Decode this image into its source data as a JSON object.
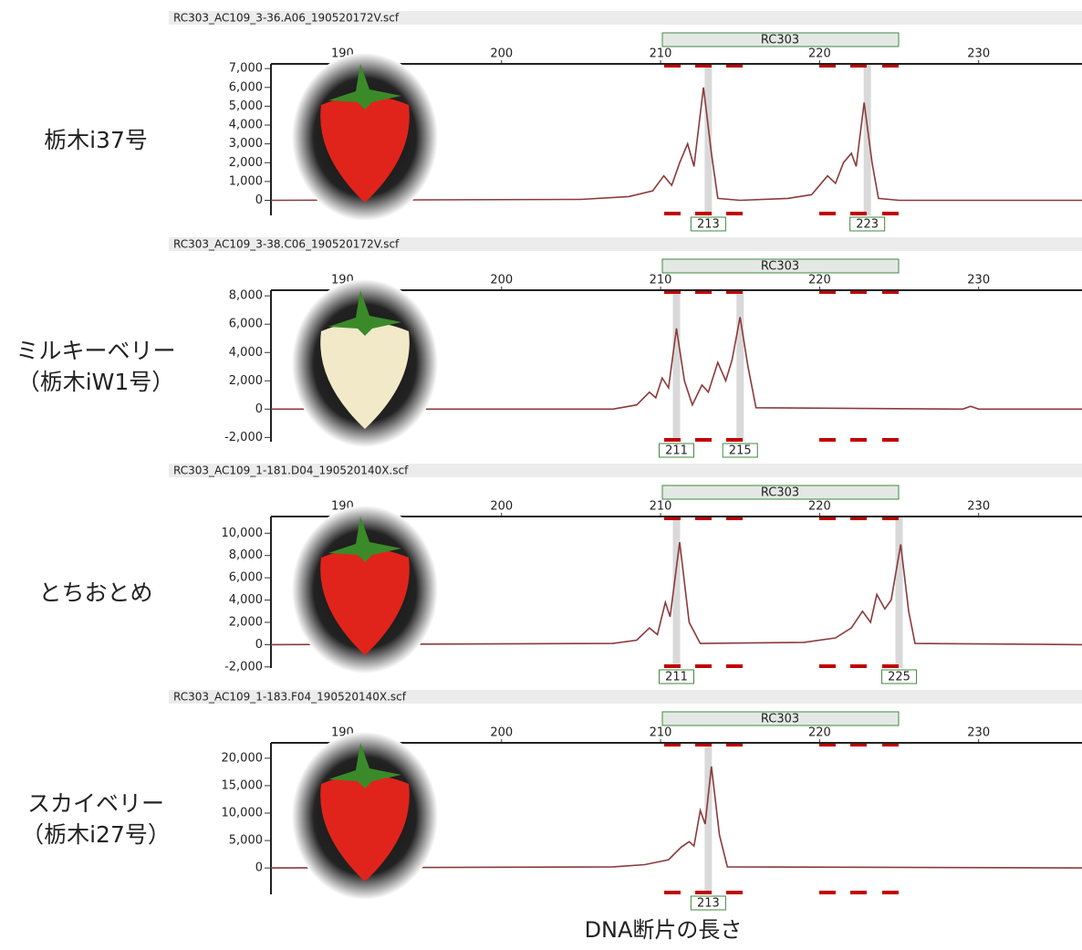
{
  "chart_data": [
    {
      "type": "line",
      "title": "RC303_AC109_3-36.A06_190520172V.scf",
      "marker": "RC303",
      "annotations": [
        "栃木i37号"
      ],
      "color": "#8b3a3a",
      "xlim": [
        185.5,
        236.5
      ],
      "xticks": [
        190,
        200,
        210,
        220,
        230
      ],
      "ylim": [
        -800,
        7250
      ],
      "yticks": [
        {
          "value": 7000,
          "label": "7,000"
        },
        {
          "value": 6000,
          "label": "6,000"
        },
        {
          "value": 5000,
          "label": "5,000"
        },
        {
          "value": 4000,
          "label": "4,000"
        },
        {
          "value": 3000,
          "label": "3,000"
        },
        {
          "value": 2000,
          "label": "2,000"
        },
        {
          "value": 1000,
          "label": "1,000"
        },
        0
      ],
      "peaks": [
        213,
        223
      ],
      "x": [
        185.5,
        205,
        208,
        209.5,
        210.2,
        210.7,
        211.2,
        211.7,
        212.1,
        212.7,
        213.2,
        213.6,
        215,
        218,
        219.5,
        220.5,
        221,
        221.5,
        222,
        222.3,
        222.8,
        223.3,
        223.7,
        225,
        236.5
      ],
      "values": [
        0,
        50,
        200,
        500,
        1300,
        800,
        2000,
        3000,
        1800,
        6000,
        2500,
        100,
        0,
        100,
        300,
        1300,
        900,
        2000,
        2500,
        1800,
        5200,
        2000,
        100,
        0,
        0
      ]
    },
    {
      "type": "line",
      "title": "RC303_AC109_3-38.C06_190520172V.scf",
      "marker": "RC303",
      "annotations": [
        "ミルキーベリー",
        "（栃木iW1号）"
      ],
      "color": "#8b3a3a",
      "xlim": [
        185.5,
        236.5
      ],
      "xticks": [
        190,
        200,
        210,
        220,
        230
      ],
      "ylim": [
        -2300,
        8400
      ],
      "yticks": [
        {
          "value": 8000,
          "label": "8,000"
        },
        {
          "value": 6000,
          "label": "6,000"
        },
        {
          "value": 4000,
          "label": "4,000"
        },
        {
          "value": 2000,
          "label": "2,000"
        },
        0,
        {
          "value": -2000,
          "label": "-2,000"
        }
      ],
      "peaks": [
        211,
        215
      ],
      "x": [
        185.5,
        207,
        208.5,
        209.3,
        209.7,
        210.1,
        210.5,
        211,
        211.5,
        212,
        212.6,
        213,
        213.6,
        214.1,
        214.5,
        215,
        215.5,
        216,
        229,
        229.5,
        230,
        236.5
      ],
      "values": [
        0,
        0,
        300,
        1200,
        800,
        2200,
        1500,
        5700,
        2000,
        300,
        1700,
        1200,
        3300,
        2000,
        3500,
        6500,
        3000,
        100,
        0,
        200,
        0,
        0
      ]
    },
    {
      "type": "line",
      "title": "RC303_AC109_1-181.D04_190520140X.scf",
      "marker": "RC303",
      "annotations": [
        "とちおとめ"
      ],
      "color": "#8b3a3a",
      "xlim": [
        185.5,
        236.5
      ],
      "xticks": [
        190,
        200,
        210,
        220,
        230
      ],
      "ylim": [
        -2100,
        11500
      ],
      "yticks": [
        {
          "value": 10000,
          "label": "10,000"
        },
        {
          "value": 8000,
          "label": "8,000"
        },
        {
          "value": 6000,
          "label": "6,000"
        },
        {
          "value": 4000,
          "label": "4,000"
        },
        {
          "value": 2000,
          "label": "2,000"
        },
        0,
        {
          "value": -2000,
          "label": "-2,000"
        }
      ],
      "peaks": [
        211,
        225
      ],
      "x": [
        185.5,
        207,
        208.5,
        209.3,
        209.8,
        210.3,
        210.6,
        211.2,
        211.8,
        212.5,
        219,
        221,
        222,
        222.7,
        223.2,
        223.6,
        224.1,
        224.5,
        225.1,
        225.6,
        226,
        236.5
      ],
      "values": [
        0,
        100,
        400,
        1500,
        900,
        3800,
        2500,
        9200,
        2000,
        100,
        200,
        600,
        1500,
        3000,
        2000,
        4500,
        3200,
        4000,
        9000,
        3000,
        100,
        0
      ]
    },
    {
      "type": "line",
      "title": "RC303_AC109_1-183.F04_190520140X.scf",
      "marker": "RC303",
      "annotations": [
        "スカイベリー",
        "（栃木i27号）"
      ],
      "color": "#8b3a3a",
      "xlim": [
        185.5,
        236.5
      ],
      "xticks": [
        190,
        200,
        210,
        220,
        230
      ],
      "ylim": [
        -4800,
        22800
      ],
      "yticks": [
        {
          "value": 20000,
          "label": "20,000"
        },
        {
          "value": 15000,
          "label": "15,000"
        },
        {
          "value": 10000,
          "label": "10,000"
        },
        {
          "value": 5000,
          "label": "5,000"
        },
        0
      ],
      "peaks": [
        213
      ],
      "x": [
        185.5,
        207,
        209,
        210.5,
        211.3,
        211.8,
        212.1,
        212.5,
        212.8,
        213.2,
        213.7,
        214.2,
        236.5
      ],
      "values": [
        0,
        200,
        600,
        1500,
        3800,
        4800,
        4000,
        10500,
        8000,
        18500,
        6000,
        200,
        0
      ]
    }
  ],
  "xlabel": "DNA断片の長さ"
}
